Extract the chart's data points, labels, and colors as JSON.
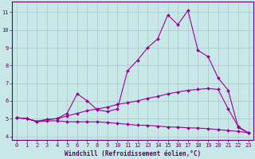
{
  "curve1_x": [
    0,
    1,
    2,
    3,
    4,
    5,
    6,
    7,
    8,
    9,
    10,
    11,
    12,
    13,
    14,
    15,
    16,
    17,
    18,
    19,
    20,
    21,
    22,
    23
  ],
  "curve1_y": [
    5.05,
    5.0,
    4.85,
    4.95,
    5.0,
    5.3,
    6.4,
    6.0,
    5.5,
    5.4,
    5.55,
    7.7,
    8.3,
    9.0,
    9.5,
    10.85,
    10.3,
    11.1,
    8.85,
    8.5,
    7.3,
    6.6,
    4.5,
    4.2
  ],
  "curve2_x": [
    0,
    1,
    2,
    3,
    4,
    5,
    6,
    7,
    8,
    9,
    10,
    11,
    12,
    13,
    14,
    15,
    16,
    17,
    18,
    19,
    20,
    21,
    22,
    23
  ],
  "curve2_y": [
    5.05,
    5.0,
    4.85,
    4.95,
    5.0,
    5.15,
    5.3,
    5.45,
    5.55,
    5.65,
    5.8,
    5.9,
    6.0,
    6.15,
    6.25,
    6.4,
    6.5,
    6.6,
    6.65,
    6.7,
    6.65,
    5.55,
    4.55,
    4.2
  ],
  "curve3_x": [
    0,
    1,
    2,
    3,
    4,
    5,
    6,
    7,
    8,
    9,
    10,
    11,
    12,
    13,
    14,
    15,
    16,
    17,
    18,
    19,
    20,
    21,
    22,
    23
  ],
  "curve3_y": [
    5.05,
    5.0,
    4.82,
    4.87,
    4.88,
    4.82,
    4.82,
    4.82,
    4.82,
    4.78,
    4.73,
    4.68,
    4.63,
    4.62,
    4.58,
    4.53,
    4.52,
    4.48,
    4.47,
    4.43,
    4.38,
    4.33,
    4.28,
    4.2
  ],
  "line_color": "#990099",
  "bg_color": "#c8e8e8",
  "grid_color": "#aabbcc",
  "axis_color": "#660066",
  "tick_color": "#660066",
  "xlabel": "Windchill (Refroidissement éolien,°C)",
  "xlim": [
    -0.5,
    23.5
  ],
  "ylim": [
    3.8,
    11.6
  ],
  "yticks": [
    4,
    5,
    6,
    7,
    8,
    9,
    10,
    11
  ],
  "ytick_labels": [
    "4",
    "5",
    "6",
    "7",
    "8",
    "9",
    "10",
    "11"
  ],
  "xticks": [
    0,
    1,
    2,
    3,
    4,
    5,
    6,
    7,
    8,
    9,
    10,
    11,
    12,
    13,
    14,
    15,
    16,
    17,
    18,
    19,
    20,
    21,
    22,
    23
  ],
  "marker": "D",
  "markersize": 2.0,
  "linewidth": 0.8,
  "tick_fontsize": 5.0,
  "xlabel_fontsize": 5.5,
  "figwidth": 3.2,
  "figheight": 2.0,
  "dpi": 100
}
